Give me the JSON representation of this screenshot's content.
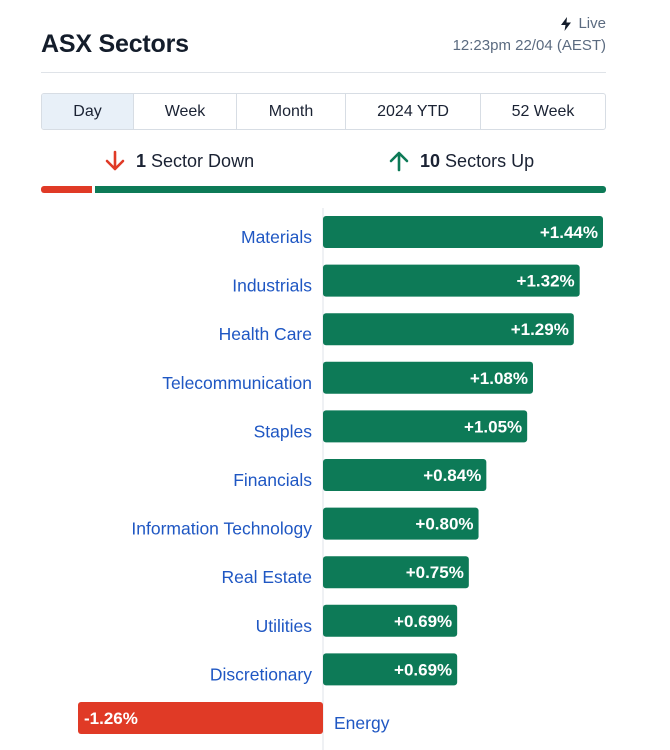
{
  "header": {
    "title": "ASX Sectors",
    "live_label": "Live",
    "timestamp": "12:23pm 22/04 (AEST)"
  },
  "tabs": [
    {
      "label": "Day",
      "active": true
    },
    {
      "label": "Week",
      "active": false
    },
    {
      "label": "Month",
      "active": false
    },
    {
      "label": "2024 YTD",
      "active": false
    },
    {
      "label": "52 Week",
      "active": false
    }
  ],
  "summary": {
    "down_count": "1",
    "down_label": "Sector Down",
    "up_count": "10",
    "up_label": "Sectors Up"
  },
  "colors": {
    "up": "#0d7a57",
    "down": "#e03a26",
    "link": "#1f57c3"
  },
  "chart_data": {
    "type": "bar",
    "orientation": "horizontal",
    "categories": [
      "Materials",
      "Industrials",
      "Health Care",
      "Telecommunication",
      "Staples",
      "Financials",
      "Information Technology",
      "Real Estate",
      "Utilities",
      "Discretionary",
      "Energy"
    ],
    "values": [
      1.44,
      1.32,
      1.29,
      1.08,
      1.05,
      0.84,
      0.8,
      0.75,
      0.69,
      0.69,
      -1.26
    ],
    "labels": [
      "+1.44%",
      "+1.32%",
      "+1.29%",
      "+1.08%",
      "+1.05%",
      "+0.84%",
      "+0.80%",
      "+0.75%",
      "+0.69%",
      "+0.69%",
      "-1.26%"
    ],
    "unit": "%"
  }
}
